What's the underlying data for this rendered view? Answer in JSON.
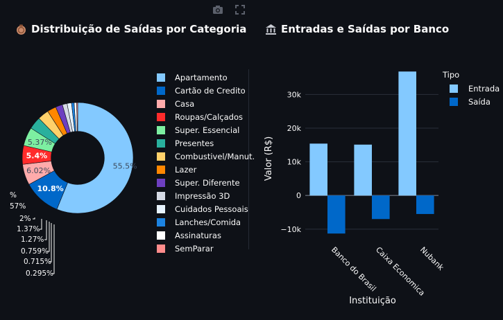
{
  "toolbar": {
    "camera_icon": "camera-icon",
    "fullscreen_icon": "fullscreen-icon"
  },
  "panels": {
    "left_title": "Distribuição de Saídas por Categoria",
    "right_title": "Entradas e Saídas por Banco"
  },
  "colors": {
    "background": "#0e1117",
    "grid": "#3a3f4b",
    "text": "#fafafa"
  },
  "chart_data": [
    {
      "type": "pie",
      "title": "Distribuição de Saídas por Categoria",
      "hole": 0.48,
      "categories": [
        "Apartamento",
        "Cartão de Credito",
        "Casa",
        "Roupas/Calçados",
        "Super. Essencial",
        "Presentes",
        "Combustivel/Manut.",
        "Lazer",
        "Super. Diferente",
        "Impressão 3D",
        "Cuidados Pessoais",
        "Lanches/Comida",
        "Assinaturas",
        "SemParar"
      ],
      "values": [
        55.5,
        10.8,
        6.02,
        5.4,
        5.37,
        3.6,
        3.2,
        2.57,
        2.0,
        1.37,
        1.27,
        0.759,
        0.715,
        0.295
      ],
      "colors": [
        "#83c9ff",
        "#0068c9",
        "#ffabab",
        "#ff2b2b",
        "#7defa1",
        "#29b09d",
        "#ffd16a",
        "#ff8700",
        "#6d3fc0",
        "#d5dae5",
        "#e8f4ff",
        "#1c83e1",
        "#ffffff",
        "#ff8c8c"
      ],
      "inside_labels": [
        "55.5%",
        "10.8%",
        "6.02%",
        "5.4%",
        "5.37%"
      ],
      "outside_labels": [
        "%",
        "57%",
        "2%",
        "1.37%",
        "1.27%",
        "0.759%",
        "0.715%",
        "0.295%"
      ],
      "legend_position": "right"
    },
    {
      "type": "bar",
      "title": "Entradas e Saídas por Banco",
      "categories": [
        "Banco do Brasil",
        "Caixa Economica",
        "Nubank"
      ],
      "series": [
        {
          "name": "Entrada",
          "values": [
            15400,
            15100,
            36800
          ],
          "color": "#83c9ff"
        },
        {
          "name": "Saída",
          "values": [
            -11300,
            -7000,
            -5500
          ],
          "color": "#0068c9"
        }
      ],
      "xlabel": "Instituição",
      "ylabel": "Valor (R$)",
      "ylim": [
        -12500,
        38500
      ],
      "yticks": [
        -10000,
        0,
        10000,
        20000,
        30000
      ],
      "ytick_labels": [
        "−10k",
        "0",
        "10k",
        "20k",
        "30k"
      ],
      "legend_title": "Tipo",
      "legend_position": "top-right",
      "grid": true
    }
  ]
}
